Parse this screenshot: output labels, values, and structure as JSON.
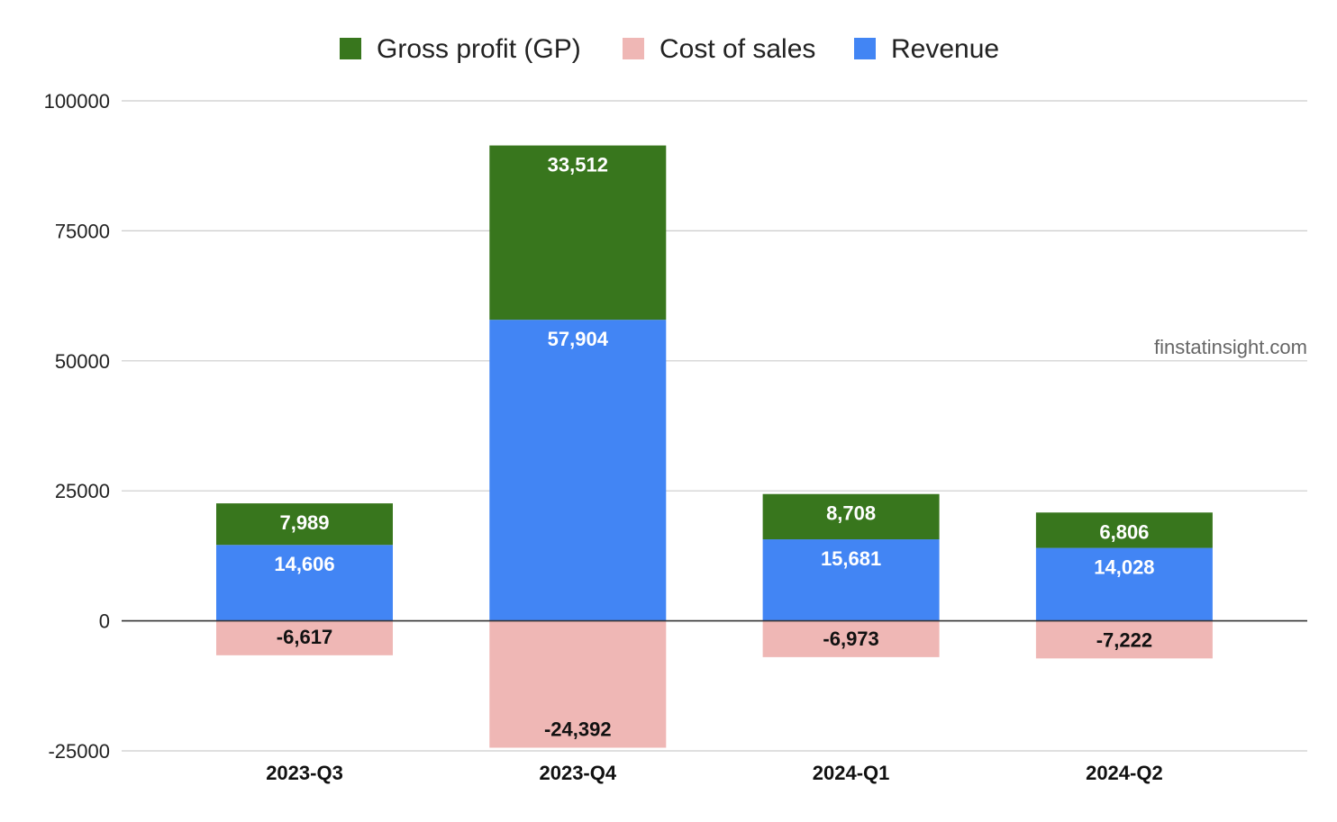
{
  "chart_data": {
    "type": "bar",
    "stacked": true,
    "categories": [
      "2023-Q3",
      "2023-Q4",
      "2024-Q1",
      "2024-Q2"
    ],
    "series": [
      {
        "name": "Gross profit (GP)",
        "color": "#38761d",
        "values": [
          7989,
          33512,
          8708,
          6806
        ],
        "labels": [
          "7,989",
          "33,512",
          "8,708",
          "6,806"
        ]
      },
      {
        "name": "Cost of sales",
        "color": "#efb7b5",
        "values": [
          -6617,
          -24392,
          -6973,
          -7222
        ],
        "labels": [
          "-6,617",
          "-24,392",
          "-6,973",
          "-7,222"
        ]
      },
      {
        "name": "Revenue",
        "color": "#4285f4",
        "values": [
          14606,
          57904,
          15681,
          14028
        ],
        "labels": [
          "14,606",
          "57,904",
          "15,681",
          "14,028"
        ]
      }
    ],
    "stack_order": [
      "Revenue",
      "Gross profit (GP)"
    ],
    "ylim": [
      -25000,
      100000
    ],
    "yticks": [
      100000,
      75000,
      50000,
      25000,
      0,
      -25000
    ],
    "ytick_labels": [
      "100000",
      "75000",
      "50000",
      "25000",
      "0",
      "-25000"
    ],
    "grid": true,
    "legend_position": "top-center",
    "title": "",
    "xlabel": "",
    "ylabel": ""
  },
  "watermark": "finstatinsight.com"
}
